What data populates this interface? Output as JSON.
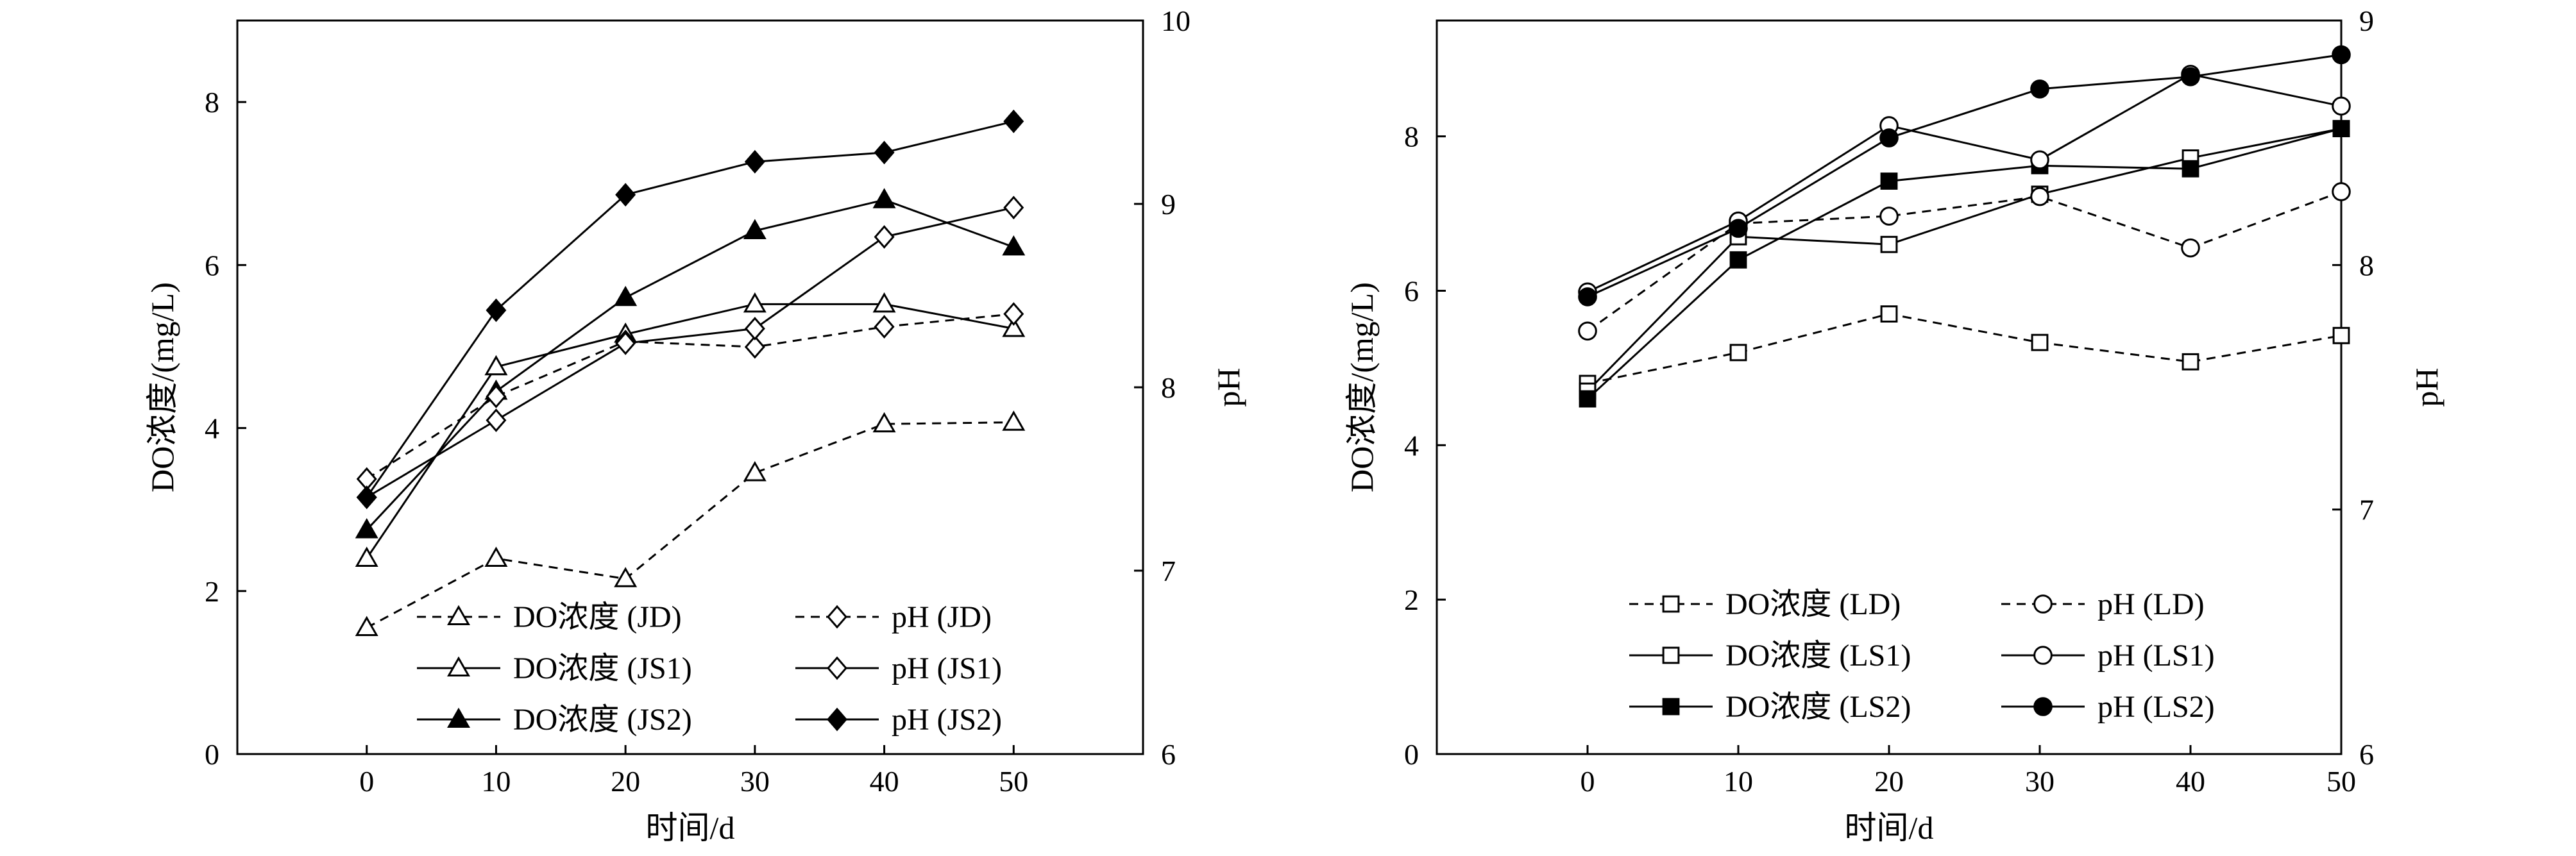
{
  "chart_data": [
    {
      "type": "line",
      "xlabel": "时间/d",
      "ylabel": "DO浓度/(mg/L)",
      "y2label": "pH",
      "x_ticks": [
        0,
        10,
        20,
        30,
        40,
        50
      ],
      "y_ticks": [
        0,
        2,
        4,
        6,
        8
      ],
      "y2_ticks": [
        6,
        7,
        8,
        9,
        10
      ],
      "xlim": [
        -10,
        60
      ],
      "ylim": [
        0,
        9
      ],
      "y2lim": [
        6,
        10
      ],
      "legend": "bottom-right",
      "grid": false,
      "x": [
        0,
        10,
        20,
        30,
        40,
        50
      ],
      "series": [
        {
          "name": "DO浓度 (JD)",
          "axis": "left",
          "marker": "triangle",
          "filled": false,
          "dashed": true,
          "values": [
            1.55,
            2.4,
            2.15,
            3.45,
            4.05,
            4.07
          ]
        },
        {
          "name": "DO浓度 (JS1)",
          "axis": "left",
          "marker": "triangle",
          "filled": false,
          "dashed": false,
          "values": [
            2.4,
            4.75,
            5.15,
            5.52,
            5.52,
            5.22
          ]
        },
        {
          "name": "DO浓度 (JS2)",
          "axis": "left",
          "marker": "triangle",
          "filled": true,
          "dashed": false,
          "values": [
            2.75,
            4.45,
            5.6,
            6.42,
            6.8,
            6.22
          ]
        },
        {
          "name": "pH (JD)",
          "axis": "right",
          "marker": "diamond",
          "filled": false,
          "dashed": true,
          "values": [
            7.5,
            7.95,
            8.25,
            8.22,
            8.33,
            8.4
          ]
        },
        {
          "name": "pH (JS1)",
          "axis": "right",
          "marker": "diamond",
          "filled": false,
          "dashed": false,
          "values": [
            7.4,
            7.82,
            8.24,
            8.32,
            8.82,
            8.98
          ]
        },
        {
          "name": "pH (JS2)",
          "axis": "right",
          "marker": "diamond",
          "filled": true,
          "dashed": false,
          "values": [
            7.4,
            8.42,
            9.05,
            9.23,
            9.28,
            9.45
          ]
        }
      ]
    },
    {
      "type": "line",
      "xlabel": "时间/d",
      "ylabel": "DO浓度/(mg/L)",
      "y2label": "pH",
      "x_ticks": [
        0,
        10,
        20,
        30,
        40,
        50
      ],
      "y_ticks": [
        0,
        2,
        4,
        6,
        8
      ],
      "y2_ticks": [
        6,
        7,
        8,
        9
      ],
      "xlim": [
        -10,
        50
      ],
      "ylim": [
        0,
        9.5
      ],
      "y2lim": [
        6,
        9
      ],
      "legend": "bottom-right",
      "grid": false,
      "x": [
        0,
        10,
        20,
        30,
        40,
        50
      ],
      "series": [
        {
          "name": "DO浓度 (LD)",
          "axis": "left",
          "marker": "square",
          "filled": false,
          "dashed": true,
          "values": [
            4.8,
            5.2,
            5.7,
            5.33,
            5.08,
            5.42
          ]
        },
        {
          "name": "DO浓度 (LS1)",
          "axis": "left",
          "marker": "square",
          "filled": false,
          "dashed": false,
          "values": [
            4.7,
            6.7,
            6.6,
            7.25,
            7.72,
            8.1
          ]
        },
        {
          "name": "DO浓度 (LS2)",
          "axis": "left",
          "marker": "square",
          "filled": true,
          "dashed": false,
          "values": [
            4.6,
            6.4,
            7.42,
            7.62,
            7.58,
            8.1
          ]
        },
        {
          "name": "pH (LD)",
          "axis": "right",
          "marker": "circle",
          "filled": false,
          "dashed": true,
          "values": [
            7.73,
            8.17,
            8.2,
            8.28,
            8.07,
            8.3
          ]
        },
        {
          "name": "pH (LS1)",
          "axis": "right",
          "marker": "circle",
          "filled": false,
          "dashed": false,
          "values": [
            7.89,
            8.18,
            8.57,
            8.43,
            8.78,
            8.65
          ]
        },
        {
          "name": "pH (LS2)",
          "axis": "right",
          "marker": "circle",
          "filled": true,
          "dashed": false,
          "values": [
            7.87,
            8.15,
            8.52,
            8.72,
            8.77,
            8.86
          ]
        }
      ]
    }
  ]
}
